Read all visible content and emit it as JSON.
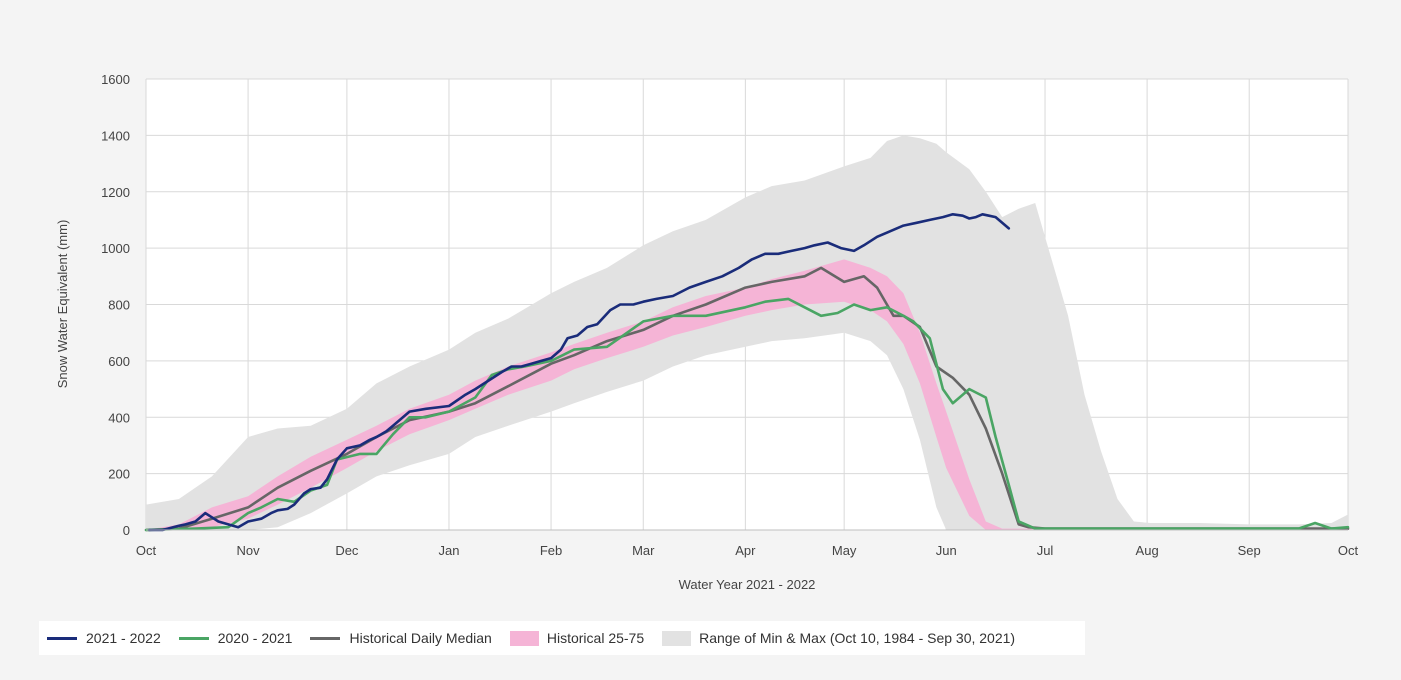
{
  "chart_data": {
    "type": "line",
    "title": "",
    "xlabel": "Water Year 2021 - 2022",
    "ylabel": "Snow Water Equivalent (mm)",
    "ylim": [
      0,
      1600
    ],
    "yticks": [
      0,
      200,
      400,
      600,
      800,
      1000,
      1200,
      1400,
      1600
    ],
    "x_unit": "day of water year (0 = Oct 1)",
    "xlim": [
      0,
      365
    ],
    "month_ticks": [
      {
        "label": "Oct",
        "day": 0
      },
      {
        "label": "Nov",
        "day": 31
      },
      {
        "label": "Dec",
        "day": 61
      },
      {
        "label": "Jan",
        "day": 92
      },
      {
        "label": "Feb",
        "day": 123
      },
      {
        "label": "Mar",
        "day": 151
      },
      {
        "label": "Apr",
        "day": 182
      },
      {
        "label": "May",
        "day": 212
      },
      {
        "label": "Jun",
        "day": 243
      },
      {
        "label": "Jul",
        "day": 273
      },
      {
        "label": "Aug",
        "day": 304
      },
      {
        "label": "Sep",
        "day": 335
      },
      {
        "label": "Oct",
        "day": 365
      }
    ],
    "bands": [
      {
        "name": "Range of Min & Max (Oct 10, 1984 - Sep 30, 2021)",
        "color": "#e2e2e2",
        "x": [
          0,
          10,
          20,
          31,
          40,
          50,
          61,
          70,
          80,
          92,
          100,
          110,
          123,
          130,
          140,
          151,
          160,
          170,
          182,
          190,
          200,
          212,
          220,
          225,
          230,
          235,
          240,
          243,
          250,
          255,
          260,
          265,
          270,
          273,
          280,
          285,
          290,
          295,
          300,
          305,
          320,
          335,
          350,
          360,
          365
        ],
        "upper": [
          90,
          110,
          190,
          330,
          360,
          370,
          430,
          520,
          580,
          640,
          700,
          750,
          840,
          880,
          930,
          1010,
          1060,
          1100,
          1180,
          1220,
          1240,
          1290,
          1320,
          1380,
          1400,
          1390,
          1370,
          1340,
          1280,
          1200,
          1110,
          1140,
          1160,
          1040,
          760,
          480,
          280,
          110,
          30,
          25,
          25,
          20,
          20,
          25,
          55
        ],
        "lower": [
          0,
          0,
          0,
          0,
          10,
          60,
          130,
          190,
          230,
          270,
          330,
          370,
          420,
          450,
          490,
          530,
          580,
          620,
          650,
          670,
          680,
          700,
          670,
          620,
          500,
          320,
          80,
          0,
          0,
          0,
          0,
          0,
          0,
          0,
          0,
          0,
          0,
          0,
          0,
          0,
          0,
          0,
          0,
          0,
          0
        ]
      },
      {
        "name": "Historical 25-75",
        "color": "#f5b4d6",
        "x": [
          0,
          10,
          20,
          31,
          40,
          50,
          61,
          70,
          80,
          92,
          100,
          110,
          123,
          130,
          140,
          151,
          160,
          170,
          182,
          190,
          200,
          212,
          220,
          225,
          230,
          235,
          240,
          243,
          250,
          255,
          260,
          265,
          270,
          273,
          280,
          290,
          300,
          320,
          335,
          350,
          365
        ],
        "upper": [
          0,
          20,
          80,
          120,
          190,
          260,
          320,
          370,
          430,
          480,
          530,
          580,
          630,
          660,
          700,
          740,
          790,
          830,
          860,
          890,
          920,
          960,
          930,
          900,
          840,
          700,
          520,
          420,
          180,
          30,
          5,
          5,
          5,
          5,
          5,
          5,
          5,
          5,
          5,
          5,
          5
        ],
        "lower": [
          0,
          0,
          10,
          40,
          90,
          150,
          220,
          280,
          340,
          390,
          430,
          480,
          530,
          570,
          610,
          650,
          690,
          720,
          760,
          780,
          800,
          810,
          780,
          740,
          660,
          520,
          330,
          220,
          50,
          0,
          0,
          0,
          0,
          0,
          0,
          0,
          0,
          0,
          0,
          0,
          0
        ]
      }
    ],
    "series": [
      {
        "name": "Historical Daily Median",
        "color": "#666666",
        "x": [
          0,
          10,
          20,
          31,
          40,
          50,
          61,
          70,
          80,
          92,
          100,
          110,
          123,
          130,
          140,
          151,
          160,
          170,
          182,
          190,
          200,
          205,
          212,
          218,
          222,
          227,
          230,
          235,
          240,
          245,
          250,
          255,
          260,
          265,
          268,
          273,
          280,
          300,
          320,
          340,
          365
        ],
        "values": [
          0,
          5,
          40,
          80,
          150,
          210,
          270,
          330,
          390,
          420,
          450,
          510,
          590,
          620,
          670,
          710,
          760,
          800,
          860,
          880,
          900,
          930,
          880,
          900,
          860,
          760,
          760,
          720,
          580,
          540,
          480,
          360,
          200,
          20,
          10,
          5,
          5,
          5,
          5,
          5,
          5
        ]
      },
      {
        "name": "2020 - 2021",
        "color": "#4aa564",
        "x": [
          0,
          15,
          25,
          31,
          35,
          40,
          45,
          50,
          55,
          58,
          65,
          70,
          75,
          80,
          85,
          92,
          100,
          105,
          110,
          115,
          123,
          130,
          140,
          151,
          160,
          170,
          182,
          188,
          195,
          200,
          205,
          210,
          215,
          220,
          225,
          230,
          233,
          238,
          242,
          245,
          250,
          255,
          258,
          262,
          265,
          270,
          300,
          350,
          355,
          360,
          365
        ],
        "values": [
          0,
          5,
          10,
          60,
          80,
          110,
          100,
          140,
          160,
          250,
          270,
          270,
          340,
          400,
          400,
          420,
          470,
          550,
          570,
          580,
          600,
          640,
          650,
          740,
          760,
          760,
          790,
          810,
          820,
          790,
          760,
          770,
          800,
          780,
          790,
          760,
          740,
          680,
          500,
          450,
          500,
          470,
          330,
          160,
          30,
          5,
          5,
          5,
          25,
          5,
          10
        ]
      },
      {
        "name": "2021 - 2022",
        "color": "#1a2c7a",
        "x": [
          1,
          5,
          10,
          12,
          15,
          18,
          20,
          22,
          25,
          28,
          31,
          33,
          35,
          38,
          40,
          43,
          45,
          48,
          50,
          53,
          55,
          58,
          61,
          65,
          68,
          70,
          73,
          75,
          80,
          85,
          92,
          97,
          100,
          104,
          108,
          111,
          114,
          117,
          120,
          123,
          126,
          128,
          131,
          134,
          137,
          141,
          144,
          148,
          151,
          155,
          160,
          165,
          170,
          175,
          180,
          184,
          188,
          192,
          196,
          200,
          203,
          207,
          211,
          215,
          218,
          222,
          226,
          230,
          234,
          238,
          242,
          245,
          248,
          250,
          252,
          254,
          256,
          258,
          262
        ],
        "values": [
          0,
          0,
          15,
          20,
          30,
          60,
          45,
          30,
          20,
          10,
          30,
          35,
          40,
          60,
          70,
          75,
          90,
          130,
          145,
          150,
          180,
          250,
          290,
          300,
          320,
          330,
          350,
          370,
          420,
          430,
          440,
          480,
          500,
          530,
          560,
          580,
          580,
          590,
          600,
          610,
          640,
          680,
          690,
          720,
          730,
          780,
          800,
          800,
          810,
          820,
          830,
          860,
          880,
          900,
          930,
          960,
          980,
          980,
          990,
          1000,
          1010,
          1020,
          1000,
          990,
          1010,
          1040,
          1060,
          1080,
          1090,
          1100,
          1110,
          1120,
          1115,
          1105,
          1110,
          1120,
          1115,
          1110,
          1070
        ]
      }
    ],
    "legend": {
      "position": "bottom-left",
      "items": [
        {
          "label": "2021 - 2022",
          "color": "#1a2c7a",
          "kind": "line"
        },
        {
          "label": "2020 - 2021",
          "color": "#4aa564",
          "kind": "line"
        },
        {
          "label": "Historical Daily Median",
          "color": "#666666",
          "kind": "line"
        },
        {
          "label": "Historical 25-75",
          "color": "#f5b4d6",
          "kind": "swatch"
        },
        {
          "label": "Range of Min & Max (Oct 10, 1984 - Sep 30, 2021)",
          "color": "#e2e2e2",
          "kind": "swatch"
        }
      ]
    },
    "grid": true
  }
}
